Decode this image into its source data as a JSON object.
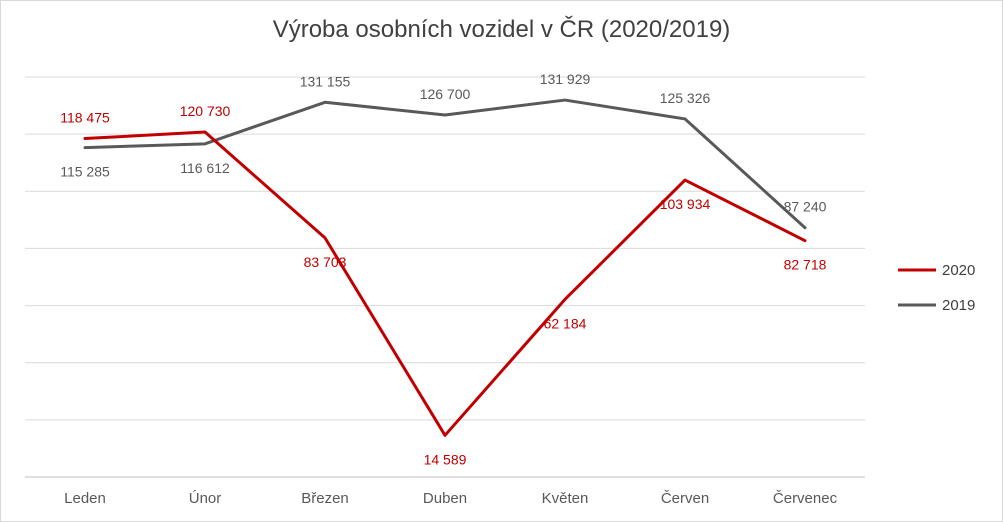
{
  "chart_data": {
    "type": "line",
    "title": "Výroba osobních vozidel v ČR (2020/2019)",
    "categories": [
      "Leden",
      "Únor",
      "Březen",
      "Duben",
      "Květen",
      "Červen",
      "Červenec"
    ],
    "series": [
      {
        "name": "2020",
        "color": "#c00000",
        "values": [
          118475,
          120730,
          83703,
          14589,
          62184,
          103934,
          82718
        ],
        "labels": [
          "118 475",
          "120 730",
          "83 703",
          "14 589",
          "62 184",
          "103 934",
          "82 718"
        ]
      },
      {
        "name": "2019",
        "color": "#595959",
        "values": [
          115285,
          116612,
          131155,
          126700,
          131929,
          125326,
          87240
        ],
        "labels": [
          "115 285",
          "116 612",
          "131 155",
          "126 700",
          "131 929",
          "125 326",
          "87 240"
        ]
      }
    ],
    "ylim": [
      0,
      140000
    ],
    "grid": true,
    "legend": "right"
  }
}
